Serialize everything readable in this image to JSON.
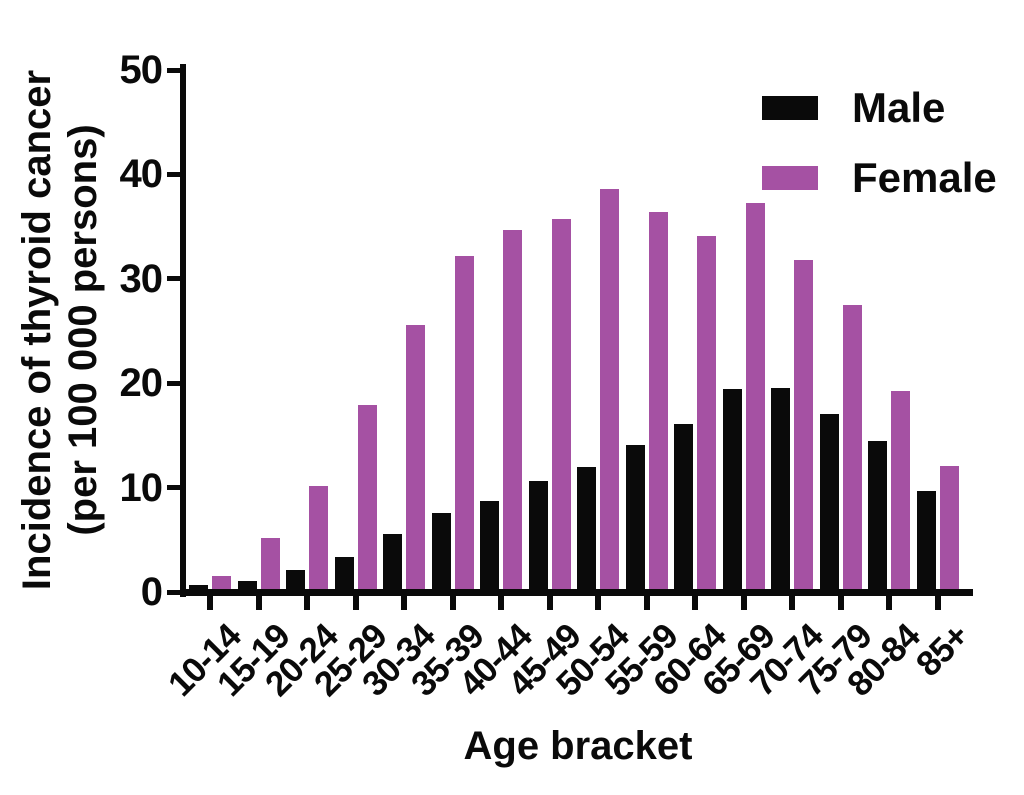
{
  "chart_data": {
    "type": "bar",
    "title": "",
    "xlabel": "Age bracket",
    "ylabel_line1": "Incidence of thyroid cancer",
    "ylabel_line2": "(per 100 000 persons)",
    "categories": [
      "10-14",
      "15-19",
      "20-24",
      "25-29",
      "30-34",
      "35-39",
      "40-44",
      "45-49",
      "50-54",
      "55-59",
      "60-64",
      "65-69",
      "70-74",
      "75-79",
      "80-84",
      "85+"
    ],
    "series": [
      {
        "name": "Male",
        "color": "#0a0a0a",
        "values": [
          0.4,
          0.8,
          1.8,
          3.1,
          5.3,
          7.3,
          8.4,
          10.3,
          11.7,
          13.8,
          15.8,
          19.2,
          19.3,
          16.8,
          14.2,
          9.4
        ]
      },
      {
        "name": "Female",
        "color": "#a551a3",
        "values": [
          1.2,
          4.9,
          9.9,
          17.6,
          25.3,
          31.9,
          34.4,
          35.4,
          38.3,
          36.1,
          33.8,
          37.0,
          31.5,
          27.2,
          19.0,
          11.8
        ]
      }
    ],
    "ylim": [
      0,
      50
    ],
    "yticks": [
      0,
      10,
      20,
      30,
      40,
      50
    ],
    "grid": false,
    "legend_position": "top-right"
  },
  "colors": {
    "male_bar": "#0a0a0a",
    "female_bar": "#a551a3",
    "axis": "#0a0a0a",
    "background": "#ffffff"
  }
}
